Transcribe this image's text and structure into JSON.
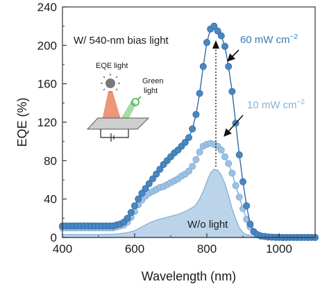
{
  "chart_data": {
    "type": "scatter",
    "xlabel": "Wavelength (nm)",
    "ylabel": "EQE (%)",
    "xlim": [
      400,
      1100
    ],
    "ylim": [
      0,
      240
    ],
    "xticks": [
      "400",
      "600",
      "800",
      "1000"
    ],
    "yticks": [
      "0",
      "40",
      "80",
      "120",
      "160",
      "200",
      "240"
    ],
    "grid": false,
    "colors": {
      "high": "#4a86bf",
      "high_line": "#2f6aa3",
      "low": "#9dc1e2",
      "low_line": "#7eaad3",
      "fill": "#bcd4ea",
      "fill_line": "#89b3d6"
    },
    "annotations": {
      "bias": "W/ 540-nm bias light",
      "high_label": "60 mW cm",
      "low_label": "10 mW cm",
      "exp": "−2",
      "wo_label": "W/o light",
      "eqe_light": "EQE light",
      "green_light_1": "Green",
      "green_light_2": "light"
    },
    "series": [
      {
        "name": "60 mW cm−2",
        "x": [
          400,
          410,
          420,
          430,
          440,
          450,
          460,
          470,
          480,
          490,
          500,
          510,
          520,
          530,
          540,
          550,
          560,
          570,
          580,
          590,
          600,
          610,
          620,
          630,
          640,
          650,
          660,
          670,
          680,
          690,
          700,
          710,
          720,
          730,
          740,
          750,
          760,
          770,
          780,
          790,
          800,
          810,
          820,
          830,
          840,
          850,
          860,
          870,
          880,
          890,
          900,
          910,
          920,
          930,
          940,
          950,
          960,
          970,
          980,
          990,
          1000,
          1010,
          1020,
          1030,
          1040,
          1050,
          1060,
          1070,
          1080,
          1090,
          1100
        ],
        "y": [
          12,
          12,
          12,
          12,
          12,
          12,
          12,
          12,
          12,
          12,
          12,
          12,
          12,
          12,
          12,
          13,
          14,
          16,
          20,
          26,
          33,
          40,
          46,
          51,
          56,
          61,
          66,
          71,
          76,
          80,
          84,
          88,
          91,
          95,
          99,
          104,
          113,
          128,
          150,
          178,
          203,
          217,
          220,
          215,
          210,
          199,
          178,
          152,
          119,
          86,
          58,
          33,
          14,
          6,
          3,
          1.5,
          1,
          0.5,
          0.3,
          0.2,
          0.1,
          0,
          0,
          0,
          0,
          0,
          0,
          0,
          0,
          0,
          0
        ]
      },
      {
        "name": "10 mW cm−2",
        "x": [
          400,
          410,
          420,
          430,
          440,
          450,
          460,
          470,
          480,
          490,
          500,
          510,
          520,
          530,
          540,
          550,
          560,
          570,
          580,
          590,
          600,
          610,
          620,
          630,
          640,
          650,
          660,
          670,
          680,
          690,
          700,
          710,
          720,
          730,
          740,
          750,
          760,
          770,
          780,
          790,
          800,
          810,
          820,
          830,
          840,
          850,
          860,
          870,
          880,
          890,
          900,
          910,
          920,
          930,
          940,
          950,
          960,
          970,
          980,
          990,
          1000,
          1010,
          1020,
          1030,
          1040,
          1050,
          1060,
          1070,
          1080,
          1090,
          1100
        ],
        "y": [
          10,
          10,
          10,
          10,
          10,
          10,
          10,
          10,
          10,
          10,
          10,
          10,
          10,
          10,
          10,
          11,
          12,
          13,
          16,
          21,
          27,
          34,
          39,
          43,
          46,
          48,
          50,
          52,
          53,
          55,
          57,
          59,
          61,
          64,
          66,
          69,
          74,
          81,
          89,
          95,
          97,
          98,
          97,
          95,
          91,
          84,
          77,
          67,
          54,
          42,
          30,
          19,
          11,
          6,
          3,
          1.5,
          1,
          0.5,
          0.3,
          0.2,
          0.1,
          0,
          0,
          0,
          0,
          0,
          0,
          0,
          0,
          0,
          0
        ]
      },
      {
        "name": "W/o light",
        "x": [
          400,
          450,
          500,
          550,
          580,
          600,
          620,
          640,
          660,
          680,
          700,
          720,
          740,
          760,
          770,
          780,
          790,
          800,
          810,
          820,
          830,
          840,
          850,
          860,
          870,
          880,
          890,
          900,
          910,
          920,
          930,
          940,
          960,
          1000,
          1100
        ],
        "y": [
          3,
          3,
          3,
          3.5,
          5,
          7,
          11,
          15,
          18,
          20,
          22,
          24,
          27,
          31,
          34,
          40,
          48,
          58,
          67,
          71,
          70,
          65,
          56,
          44,
          30,
          19,
          10,
          5,
          3,
          2,
          1,
          0.5,
          0,
          0,
          0
        ]
      }
    ]
  }
}
